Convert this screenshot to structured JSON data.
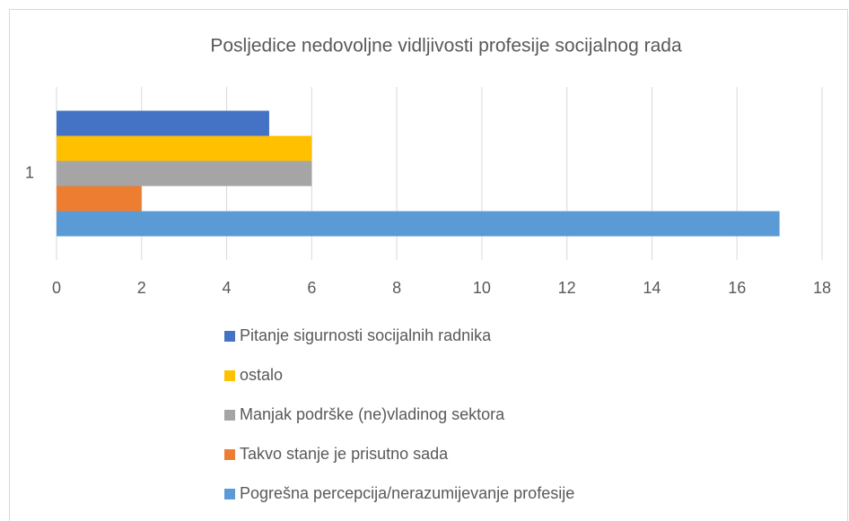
{
  "chart_data": {
    "type": "bar",
    "title": "Posljedice nedovoljne vidljivosti profesije socijalnog rada",
    "categories": [
      "1"
    ],
    "series": [
      {
        "name": "Pitanje sigurnosti socijalnih radnika",
        "color": "#4472c4",
        "values": [
          5
        ]
      },
      {
        "name": "ostalo",
        "color": "#ffc000",
        "values": [
          6
        ]
      },
      {
        "name": "Manjak podrške (ne)vladinog sektora",
        "color": "#a5a5a5",
        "values": [
          6
        ]
      },
      {
        "name": "Takvo stanje je prisutno sada",
        "color": "#ed7d31",
        "values": [
          2
        ]
      },
      {
        "name": "Pogrešna percepcija/nerazumijevanje profesije",
        "color": "#5b9bd5",
        "values": [
          17
        ]
      }
    ],
    "xlim": [
      0,
      18
    ],
    "xticks": [
      0,
      2,
      4,
      6,
      8,
      10,
      12,
      14,
      16,
      18
    ],
    "grid": true,
    "legend": "bottom"
  }
}
